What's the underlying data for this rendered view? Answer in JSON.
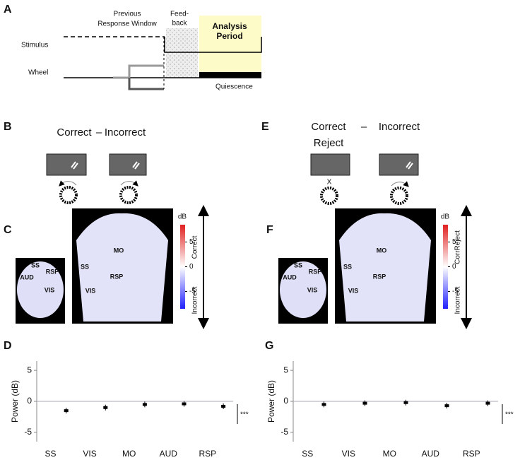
{
  "panelA": {
    "label": "A",
    "response_window": [
      "Previous",
      "Response Window"
    ],
    "feedback": [
      "Feed-",
      "back"
    ],
    "analysis": [
      "Analysis",
      "Period"
    ],
    "stimulus": "Stimulus",
    "wheel": "Wheel",
    "quiescence": "Quiescence"
  },
  "panelB": {
    "label": "B",
    "left": "Correct",
    "sep": "–",
    "right": "Incorrect"
  },
  "panelE": {
    "label": "E",
    "left": [
      "Correct",
      "Reject"
    ],
    "sep": "–",
    "right": "Incorrect",
    "no_move": "X"
  },
  "panelC": {
    "label": "C",
    "unit": "dB",
    "clim": [
      -8.5,
      8.5
    ],
    "cticks": [
      5,
      0,
      -5
    ],
    "top": "Correct",
    "bottom": "Incorrect",
    "dorsal": [
      "MO",
      "SS",
      "RSP",
      "VIS"
    ],
    "lateral": [
      "SS",
      "RSP",
      "AUD",
      "VIS"
    ]
  },
  "panelF": {
    "label": "F",
    "unit": "dB",
    "clim": [
      -8.5,
      8.5
    ],
    "cticks": [
      5,
      0,
      -5
    ],
    "top": "CorrReject",
    "bottom": "Incorrect",
    "dorsal": [
      "MO",
      "SS",
      "RSP",
      "VIS"
    ],
    "lateral": [
      "SS",
      "RSP",
      "AUD",
      "VIS"
    ]
  },
  "panelD": {
    "label": "D",
    "y_label": "Power (dB)",
    "categories": [
      "SS",
      "VIS",
      "MO",
      "AUD",
      "RSP"
    ],
    "means": [
      -1.5,
      -1,
      -0.5,
      -0.4,
      -0.8
    ],
    "ylim": [
      -6.5,
      6.5
    ],
    "yticks": [
      -5,
      0,
      5
    ],
    "significance": "***"
  },
  "panelG": {
    "label": "G",
    "y_label": "Power (dB)",
    "categories": [
      "SS",
      "VIS",
      "MO",
      "AUD",
      "RSP"
    ],
    "means": [
      -0.5,
      -0.3,
      -0.2,
      -0.7,
      -0.3
    ],
    "ylim": [
      -6.5,
      6.5
    ],
    "yticks": [
      -5,
      0,
      5
    ],
    "significance": "***"
  }
}
